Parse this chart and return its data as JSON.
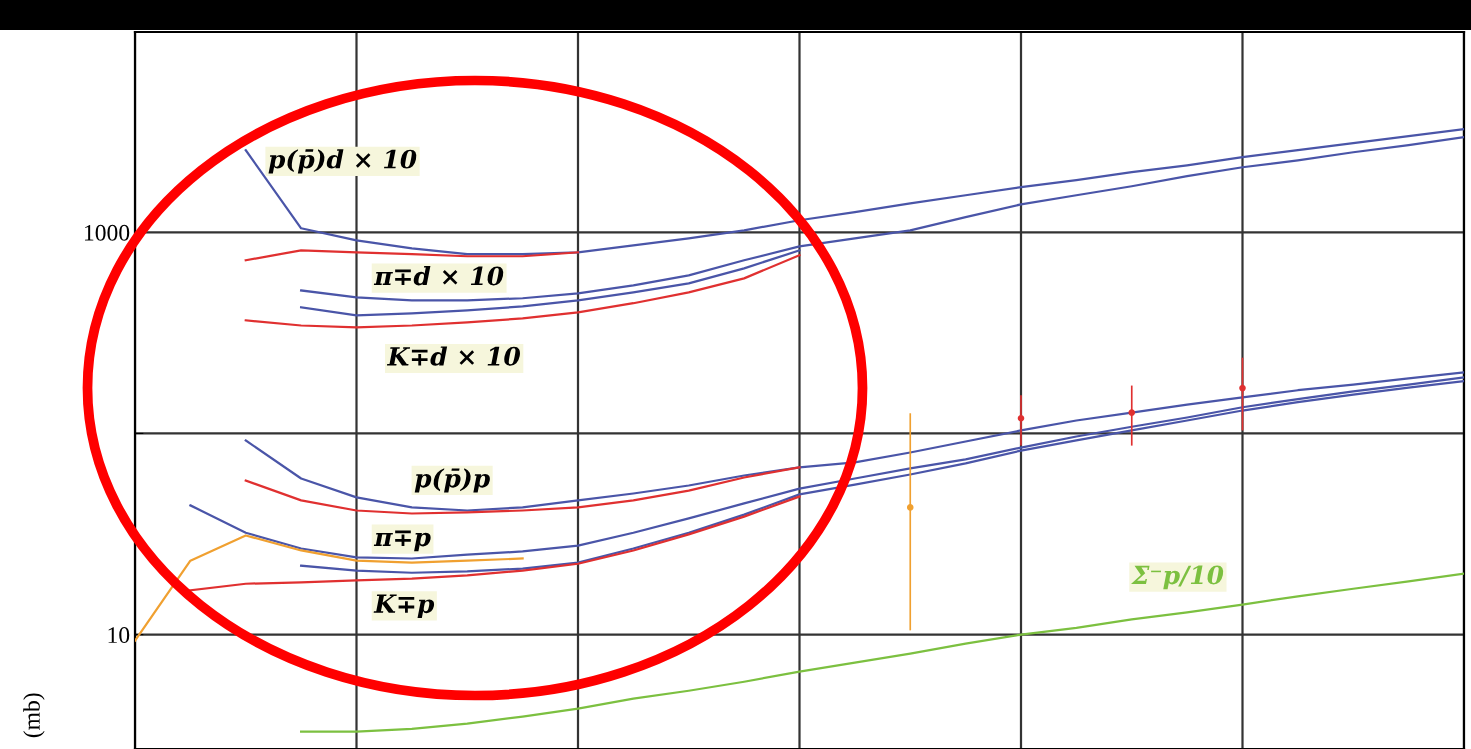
{
  "chart_data": {
    "type": "line",
    "ylabel": "(mb)",
    "log": "y",
    "ylim": [
      2.7,
      9900
    ],
    "yticks": [
      10,
      {
        "value": 100,
        "label": null
      },
      1000
    ],
    "grid": true,
    "tick_labels": "y",
    "legend": false,
    "marker": "none",
    "line_style": "solid",
    "categories": [
      null,
      null,
      null,
      null,
      null,
      null,
      null,
      null,
      null,
      null,
      null,
      null,
      null,
      null,
      null,
      null,
      null,
      null,
      null,
      null,
      null,
      null,
      null,
      null,
      null
    ],
    "series": [
      {
        "name": "p(p̄)d × 10",
        "color": "#4a55a8",
        "values": [
          null,
          null,
          2559,
          1047,
          912,
          832,
          778,
          778,
          795,
          861,
          933,
          1023,
          1148,
          1259,
          1393,
          1528,
          1675,
          1815,
          1990,
          2153,
          2362,
          2559,
          2773,
          3004,
          3253
        ]
      },
      {
        "color": "#e03030",
        "values": [
          null,
          null,
          726,
          813,
          795,
          778,
          760,
          760,
          795,
          null,
          null,
          null,
          null,
          null,
          null,
          null,
          null,
          null,
          null,
          null,
          null,
          null,
          null,
          null,
          null
        ]
      },
      {
        "name": "π∓d × 10",
        "color": "#4a55a8",
        "values": [
          null,
          null,
          null,
          514,
          475,
          459,
          459,
          470,
          497,
          545,
          611,
          726,
          851,
          933,
          1023,
          1189,
          1377,
          1528,
          1694,
          1900,
          2105,
          2280,
          2500,
          2710,
          2970
        ]
      },
      {
        "color": "#4a55a8",
        "values": [
          null,
          null,
          null,
          424,
          386,
          395,
          409,
          428,
          459,
          503,
          557,
          662,
          813,
          null,
          null,
          null,
          null,
          null,
          null,
          null,
          null,
          null,
          null,
          null,
          null
        ]
      },
      {
        "name": "K∓d × 10",
        "color": "#e03030",
        "values": [
          null,
          null,
          365,
          344,
          337,
          344,
          357,
          373,
          400,
          444,
          503,
          590,
          769,
          null,
          null,
          null,
          null,
          null,
          null,
          null,
          null,
          null,
          null,
          null,
          null
        ]
      },
      {
        "name": "p(p̄)p",
        "color": "#4a55a8",
        "values": [
          null,
          null,
          92.3,
          59.7,
          48.1,
          42.9,
          41.4,
          42.9,
          46.5,
          50.3,
          55.1,
          61.8,
          67.8,
          71.8,
          80.4,
          91.2,
          103.5,
          116,
          127,
          139,
          151,
          164,
          175,
          188,
          201
        ]
      },
      {
        "color": "#e03030",
        "values": [
          null,
          null,
          58.3,
          46.5,
          41.4,
          40.0,
          40.5,
          41.4,
          42.9,
          46.5,
          52.0,
          60.4,
          67.8,
          null,
          null,
          null,
          null,
          null,
          null,
          null,
          null,
          null,
          null,
          null,
          null
        ]
      },
      {
        "name": "π∓p",
        "color": "#4a55a8",
        "values": [
          null,
          43.9,
          32.1,
          26.8,
          24.2,
          23.9,
          25.0,
          25.9,
          27.7,
          32.1,
          37.8,
          44.9,
          53.2,
          59.7,
          67.0,
          74.3,
          85.1,
          96.6,
          108,
          120,
          135,
          148,
          162,
          175,
          190
        ]
      },
      {
        "color": "#f0a030",
        "values": [
          9.33,
          23.3,
          31.1,
          26.2,
          23.3,
          22.8,
          23.3,
          23.9,
          null,
          null,
          null,
          null,
          null,
          null,
          null,
          null,
          null,
          null,
          null,
          null,
          null,
          null,
          null,
          null,
          null
        ]
      },
      {
        "color": "#4a55a8",
        "values": [
          null,
          null,
          null,
          22.0,
          20.8,
          20.3,
          20.6,
          21.3,
          22.8,
          26.8,
          32.1,
          39.5,
          49.8,
          55.7,
          62.5,
          71.0,
          82.2,
          92.3,
          103.5,
          116,
          130,
          143,
          156,
          169,
          182
        ]
      },
      {
        "name": "K∓p",
        "color": "#e03030",
        "values": [
          null,
          16.6,
          17.9,
          18.2,
          18.6,
          19.0,
          19.7,
          20.8,
          22.5,
          26.2,
          31.5,
          38.6,
          48.6,
          null,
          null,
          null,
          null,
          null,
          null,
          null,
          null,
          null,
          null,
          null,
          null
        ]
      },
      {
        "type": "scatter",
        "color": "#e03030",
        "values": [
          null,
          null,
          null,
          null,
          null,
          null,
          null,
          null,
          null,
          null,
          null,
          null,
          null,
          null,
          null,
          null,
          119,
          null,
          127,
          null,
          168,
          null,
          null,
          null,
          null
        ],
        "errors": [
          null,
          null,
          null,
          null,
          null,
          null,
          null,
          null,
          null,
          null,
          null,
          null,
          null,
          null,
          null,
          null,
          [
            87,
            155
          ],
          null,
          [
            87,
            173
          ],
          null,
          [
            103.5,
            238
          ],
          null,
          null,
          null,
          null
        ]
      },
      {
        "type": "scatter",
        "color": "#f0a030",
        "values": [
          null,
          null,
          null,
          null,
          null,
          null,
          null,
          null,
          null,
          null,
          null,
          null,
          null,
          null,
          42.9,
          null,
          null,
          null,
          null,
          null,
          null,
          null,
          null,
          null,
          null
        ],
        "errors": [
          null,
          null,
          null,
          null,
          null,
          null,
          null,
          null,
          null,
          null,
          null,
          null,
          null,
          null,
          [
            10.5,
            126
          ],
          null,
          null,
          null,
          null,
          null,
          null,
          null,
          null,
          null,
          null
        ]
      },
      {
        "name": "Σ⁻p/10",
        "color": "#7cc040",
        "values": [
          null,
          null,
          null,
          3.29,
          3.29,
          3.4,
          3.61,
          3.91,
          4.29,
          4.81,
          5.26,
          5.83,
          6.55,
          7.26,
          8.04,
          9.02,
          10.0,
          10.8,
          11.9,
          12.9,
          14.1,
          15.5,
          16.9,
          18.4,
          20.1
        ]
      }
    ]
  }
}
